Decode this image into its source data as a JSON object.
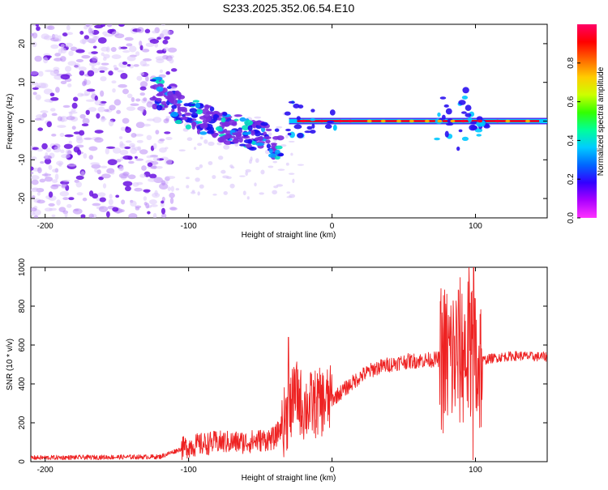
{
  "title": "S233.2025.352.06.54.E10",
  "colors": {
    "snr_line": "#ee2222",
    "spectrogram_band": "#dd1030",
    "scatter": "#7a2be0",
    "colorbar": [
      "#ff33ff",
      "#aa00ff",
      "#3300ff",
      "#0066ff",
      "#00ccff",
      "#00ff99",
      "#33ff00",
      "#ccff00",
      "#ffcc00",
      "#ff6600",
      "#ff0000",
      "#ff0066"
    ]
  },
  "chart_data": [
    {
      "type": "heatmap",
      "name": "spectrogram",
      "xlabel": "Height of straight line (km)",
      "ylabel": "Frequency (Hz)",
      "xlim": [
        -210,
        150
      ],
      "ylim": [
        -25,
        25
      ],
      "x_ticks": [
        -200,
        -100,
        0,
        100
      ],
      "x_tick_labels": [
        "-200",
        "-100",
        "0",
        "100"
      ],
      "y_ticks": [
        -20,
        -10,
        0,
        10,
        20
      ],
      "y_tick_labels": [
        "-20",
        "-10",
        "0",
        "10",
        "20"
      ],
      "colorbar": {
        "label": "Normalized spectral amplitude",
        "range": [
          0,
          1
        ],
        "ticks": [
          0.0,
          0.2,
          0.4,
          0.6,
          0.8
        ],
        "tick_labels": [
          "0.0",
          "0.2",
          "0.4",
          "0.6",
          "0.8"
        ]
      },
      "features": [
        {
          "name": "noise",
          "x_range": [
            -210,
            -110
          ],
          "freq_range": [
            -25,
            25
          ],
          "amplitude": 0.1
        },
        {
          "name": "descending branch",
          "x": [
            -125,
            -100,
            -80,
            -60,
            -45,
            -35
          ],
          "freq": [
            8,
            2,
            -1,
            -3,
            -5,
            -6
          ],
          "amplitude": 0.25
        },
        {
          "name": "zero-frequency band",
          "x_range": [
            -30,
            150
          ],
          "freq": 0,
          "amplitude": 0.95
        }
      ]
    },
    {
      "type": "line",
      "name": "snr",
      "xlabel": "Height of straight line (km)",
      "ylabel": "SNR (10 * v/v)",
      "xlim": [
        -210,
        150
      ],
      "ylim": [
        0,
        1000
      ],
      "x_ticks": [
        -200,
        -100,
        0,
        100
      ],
      "x_tick_labels": [
        "-200",
        "-100",
        "0",
        "100"
      ],
      "y_ticks": [
        0,
        200,
        400,
        600,
        800,
        1000
      ],
      "y_tick_labels": [
        "0",
        "200",
        "400",
        "600",
        "800",
        "1000"
      ],
      "series": [
        {
          "name": "SNR",
          "x": [
            -210,
            -120,
            -100,
            -80,
            -60,
            -40,
            -30,
            -25,
            -20,
            -10,
            0,
            10,
            20,
            30,
            40,
            50,
            60,
            70,
            80,
            85,
            90,
            95,
            100,
            105,
            110,
            120,
            130,
            140,
            150
          ],
          "y": [
            20,
            25,
            80,
            100,
            100,
            120,
            250,
            350,
            280,
            300,
            320,
            380,
            440,
            480,
            500,
            515,
            520,
            525,
            530,
            540,
            560,
            580,
            500,
            520,
            530,
            540,
            545,
            540,
            540
          ]
        }
      ]
    }
  ]
}
